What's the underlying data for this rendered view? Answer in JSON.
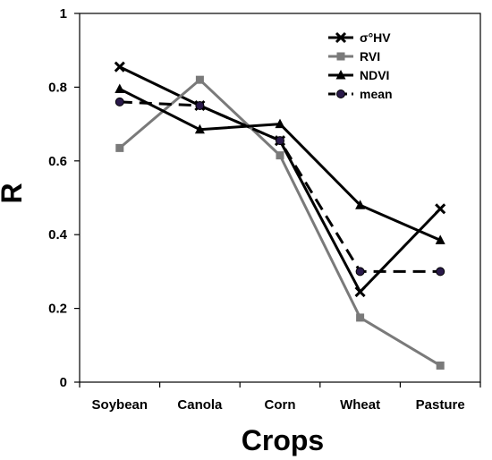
{
  "chart_data": {
    "type": "line",
    "xlabel": "Crops",
    "ylabel": "R",
    "categories": [
      "Soybean",
      "Canola",
      "Corn",
      "Wheat",
      "Pasture"
    ],
    "ylim": [
      0,
      1
    ],
    "yticks": [
      "0",
      "0.2",
      "0.4",
      "0.6",
      "0.8",
      "1"
    ],
    "yticks_values": [
      0,
      0.2,
      0.4,
      0.6,
      0.8,
      1
    ],
    "grid": false,
    "legend_position": "top-right",
    "series": [
      {
        "name": "σ°HV",
        "values": [
          0.855,
          0.75,
          0.655,
          0.245,
          0.47
        ],
        "color": "#000000",
        "marker": "x",
        "dash": "solid"
      },
      {
        "name": "RVI",
        "values": [
          0.635,
          0.82,
          0.615,
          0.175,
          0.045
        ],
        "color": "#7a7a7a",
        "marker": "square",
        "dash": "solid"
      },
      {
        "name": "NDVI",
        "values": [
          0.795,
          0.685,
          0.7,
          0.48,
          0.385
        ],
        "color": "#000000",
        "marker": "triangle",
        "dash": "solid"
      },
      {
        "name": "mean",
        "values": [
          0.76,
          0.75,
          0.655,
          0.3,
          0.3
        ],
        "color": "#000000",
        "marker": "circle",
        "dash": "dashed"
      }
    ]
  }
}
